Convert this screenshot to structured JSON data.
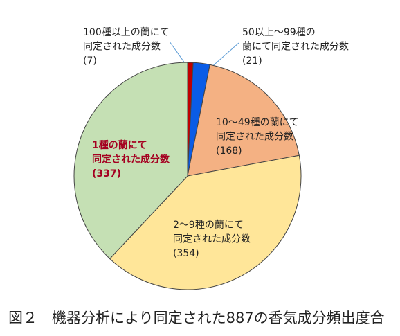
{
  "chart_data": {
    "type": "pie",
    "categories": [
      [
        "100種以上の蘭にて",
        "同定された成分数"
      ],
      [
        "50以上～99種の",
        "蘭にて同定された成分数"
      ],
      [
        "10～49種の蘭にて",
        "同定された成分数"
      ],
      [
        "2～9種の蘭にて",
        "同定された成分数"
      ],
      [
        "1種の蘭にて",
        "同定された成分数"
      ]
    ],
    "values": [
      7,
      21,
      168,
      354,
      337
    ],
    "value_labels": [
      "(7)",
      "(21)",
      "(168)",
      "(354)",
      "(337)"
    ],
    "colors": [
      "#c00000",
      "#0a5ce6",
      "#f4b183",
      "#ffe699",
      "#c5e0b4"
    ],
    "caption": "図２　機器分析により同定された887の香気成分頻出度合"
  }
}
